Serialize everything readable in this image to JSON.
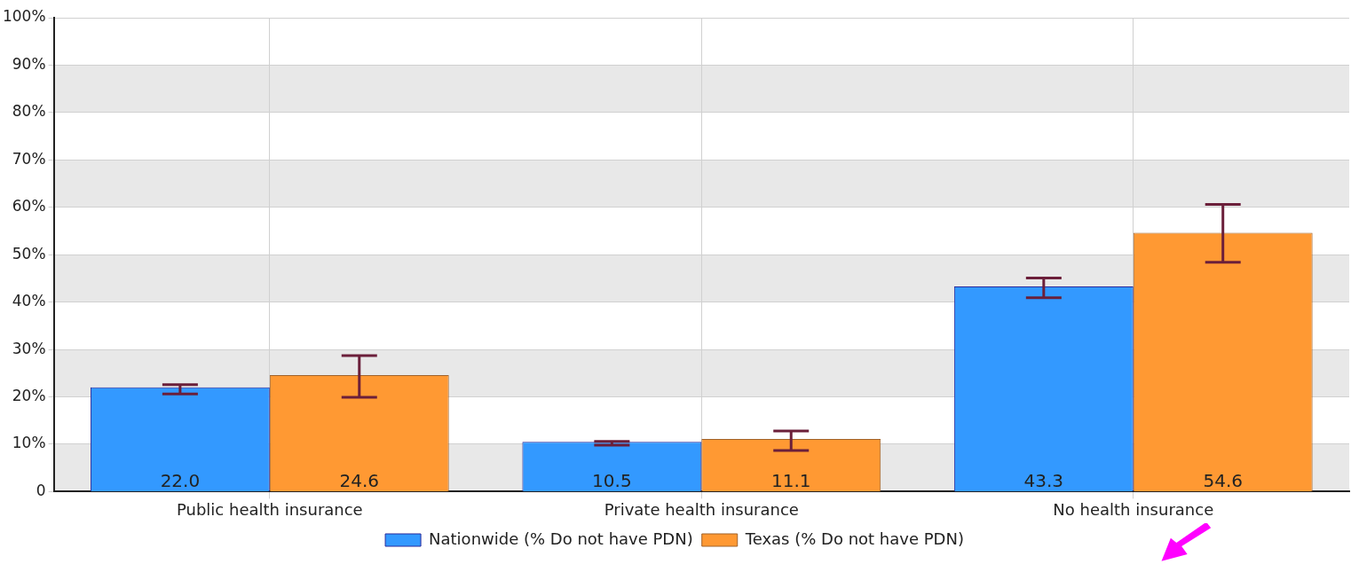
{
  "chart_data": {
    "type": "bar",
    "categories": [
      "Public health insurance",
      "Private health insurance",
      "No health insurance"
    ],
    "series": [
      {
        "name": "Nationwide (% Do not have PDN)",
        "color": "#3399ff",
        "values": [
          22.0,
          10.5,
          43.3
        ],
        "value_labels": [
          "22.0",
          "10.5",
          "43.3"
        ],
        "errors": [
          [
            20.6,
            22.6
          ],
          [
            9.8,
            10.6
          ],
          [
            40.9,
            45.1
          ]
        ]
      },
      {
        "name": "Texas (% Do not have PDN)",
        "color": "#ff9933",
        "values": [
          24.6,
          11.1,
          54.6
        ],
        "value_labels": [
          "24.6",
          "11.1",
          "54.6"
        ],
        "errors": [
          [
            19.9,
            28.7
          ],
          [
            8.7,
            12.8
          ],
          [
            48.4,
            60.6
          ]
        ]
      }
    ],
    "ylim": [
      0,
      100
    ],
    "yticks": [
      {
        "value": 0,
        "label": "0"
      },
      {
        "value": 10,
        "label": "10%"
      },
      {
        "value": 20,
        "label": "20%"
      },
      {
        "value": 30,
        "label": "30%"
      },
      {
        "value": 40,
        "label": "40%"
      },
      {
        "value": 50,
        "label": "50%"
      },
      {
        "value": 60,
        "label": "60%"
      },
      {
        "value": 70,
        "label": "70%"
      },
      {
        "value": 80,
        "label": "80%"
      },
      {
        "value": 90,
        "label": "90%"
      },
      {
        "value": 100,
        "label": "100%"
      }
    ],
    "grid": true,
    "legend": "bottom"
  }
}
